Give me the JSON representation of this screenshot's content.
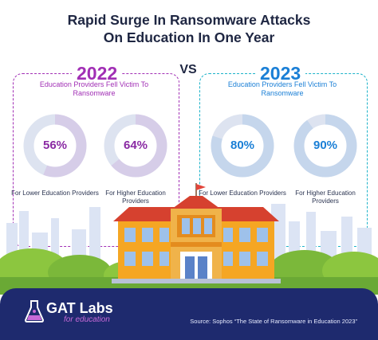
{
  "title_line1": "Rapid Surge In Ransomware Attacks",
  "title_line2": "On Education In One Year",
  "vs": "VS",
  "colors": {
    "purple": "#a12fb5",
    "blue": "#1a7fd6",
    "teal": "#1bb2c9",
    "ring_track": "#dde3f0",
    "footer": "#1e2a6e"
  },
  "chart_data": [
    {
      "type": "pie",
      "title": "2022",
      "subtitle": "Education Providers Fell Victim To Ransomware",
      "categories": [
        "For Lower Education Providers",
        "For Higher Education Providers"
      ],
      "values": [
        56,
        64
      ],
      "labels": [
        "56%",
        "64%"
      ],
      "unit": "%"
    },
    {
      "type": "pie",
      "title": "2023",
      "subtitle": "Education Providers Fell Victim To Ransomware",
      "categories": [
        "For Lower Education Providers",
        "For Higher Education Providers"
      ],
      "values": [
        80,
        90
      ],
      "labels": [
        "80%",
        "90%"
      ],
      "unit": "%"
    }
  ],
  "footer": {
    "brand": "GAT Labs",
    "brand_sub": "for education",
    "source": "Source: Sophos “The State of Ransomware in Education 2023”"
  }
}
